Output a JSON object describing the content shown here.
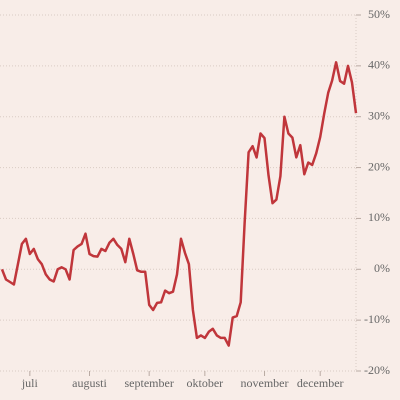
{
  "chart_data": {
    "type": "line",
    "categories": [
      null,
      null,
      null,
      null,
      null,
      null,
      null,
      "juli",
      null,
      null,
      null,
      null,
      null,
      null,
      null,
      null,
      null,
      null,
      null,
      null,
      null,
      null,
      "augusti",
      null,
      null,
      null,
      null,
      null,
      null,
      null,
      null,
      null,
      null,
      null,
      null,
      null,
      null,
      "september",
      null,
      null,
      null,
      null,
      null,
      null,
      null,
      null,
      null,
      null,
      null,
      null,
      null,
      "oktober",
      null,
      null,
      null,
      null,
      null,
      null,
      null,
      null,
      null,
      null,
      null,
      null,
      null,
      null,
      "november",
      null,
      null,
      null,
      null,
      null,
      null,
      null,
      null,
      null,
      null,
      null,
      null,
      null,
      "december",
      null,
      null,
      null,
      null,
      null,
      null,
      null,
      null,
      null
    ],
    "values": [
      0,
      -2,
      -2.5,
      -3,
      1,
      5,
      6,
      3,
      4,
      2,
      1,
      -1,
      -2,
      -2.4,
      0,
      0.4,
      0,
      -2,
      3.8,
      4.5,
      5,
      7,
      3,
      2.6,
      2.5,
      4,
      3.6,
      5.2,
      6,
      4.8,
      4,
      1.4,
      6,
      3,
      -0.2,
      -0.5,
      -0.5,
      -7,
      -8,
      -6.6,
      -6.5,
      -4.2,
      -4.7,
      -4.4,
      -1,
      6,
      3.2,
      1,
      -8,
      -13.5,
      -13,
      -13.5,
      -12.3,
      -11.7,
      -13,
      -13.5,
      -13.5,
      -15,
      -9.5,
      -9.2,
      -6.5,
      9,
      23,
      24.2,
      22,
      26.7,
      25.8,
      18.5,
      13,
      13.7,
      18.3,
      30,
      26.7,
      25.9,
      22,
      24.4,
      18.7,
      21,
      20.5,
      22.8,
      26,
      30.6,
      34.7,
      37.1,
      40.7,
      37,
      36.5,
      40,
      36.7,
      30.7
    ],
    "color": "#c0363b",
    "ylim": [
      -20,
      50
    ],
    "yticks": [
      {
        "value": -20,
        "label": "-20%"
      },
      {
        "value": -10,
        "label": "-10%"
      },
      {
        "value": 0,
        "label": "0%"
      },
      {
        "value": 10,
        "label": "10%"
      },
      {
        "value": 20,
        "label": "20%"
      },
      {
        "value": 30,
        "label": "30%"
      },
      {
        "value": 40,
        "label": "40%"
      },
      {
        "value": 50,
        "label": "50%"
      }
    ],
    "grid": true
  }
}
